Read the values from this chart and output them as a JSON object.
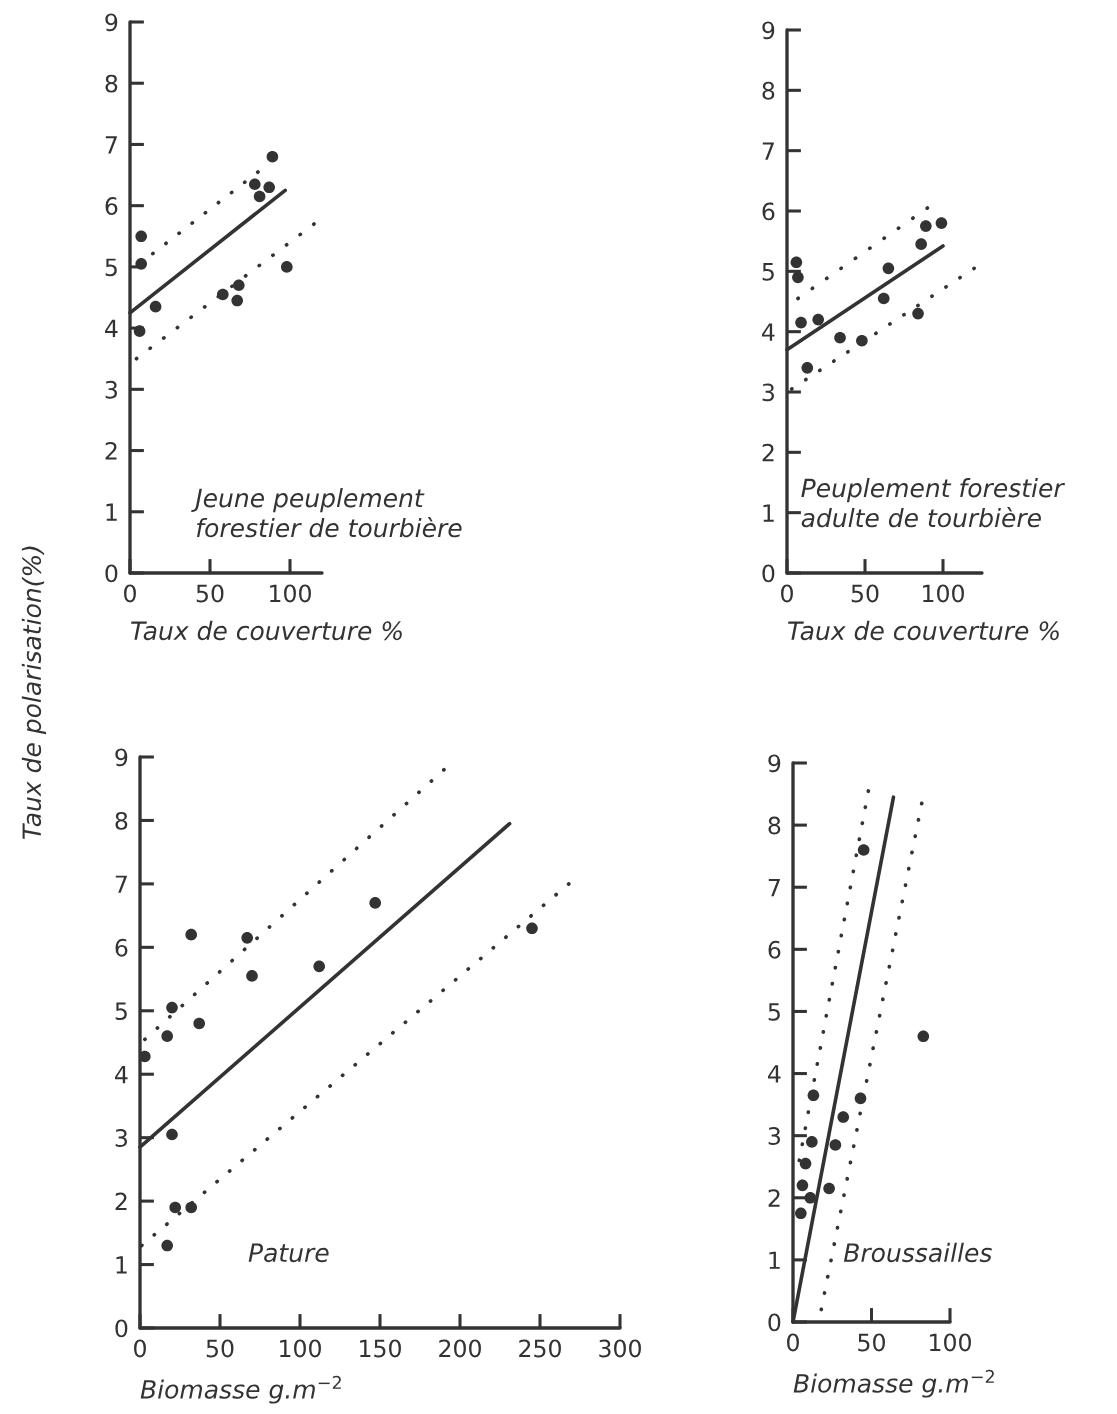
{
  "chart_data": [
    {
      "type": "scatter",
      "xlabel": "Taux de couverture %",
      "annotations": [
        "Jeune peuplement\nforestier de tourbière"
      ],
      "xlim": [
        0,
        120
      ],
      "ylim": [
        0,
        9
      ],
      "xticks": [
        0,
        50,
        100
      ],
      "yticks": [
        0,
        1,
        2,
        3,
        4,
        5,
        6,
        7,
        8,
        9
      ],
      "series": [
        {
          "marker": "circle",
          "color": "#333333",
          "x": [
            7,
            7,
            6,
            16,
            58,
            68,
            67,
            78,
            81,
            87,
            89,
            98
          ],
          "values": [
            5.5,
            5.05,
            3.95,
            4.35,
            4.55,
            4.7,
            4.45,
            6.35,
            6.15,
            6.3,
            6.8,
            5.0
          ]
        },
        {
          "type": "line",
          "line_style": "solid",
          "color": "#333333",
          "x": [
            0,
            97
          ],
          "values": [
            4.25,
            6.25
          ]
        },
        {
          "type": "line",
          "line_style": "dotted",
          "color": "#333333",
          "x": [
            6,
            80
          ],
          "values": [
            5.05,
            6.55
          ]
        },
        {
          "type": "line",
          "line_style": "dotted",
          "color": "#333333",
          "x": [
            4,
            115
          ],
          "values": [
            3.5,
            5.7
          ]
        }
      ]
    },
    {
      "type": "scatter",
      "xlabel": "Taux de couverture %",
      "annotations": [
        "Peuplement forestier\nadulte de tourbière"
      ],
      "xlim": [
        0,
        125
      ],
      "ylim": [
        0,
        9
      ],
      "xticks": [
        0,
        50,
        100
      ],
      "yticks": [
        0,
        1,
        2,
        3,
        4,
        5,
        6,
        7,
        8,
        9
      ],
      "series": [
        {
          "marker": "circle",
          "color": "#333333",
          "x": [
            6,
            7,
            9,
            20,
            13,
            34,
            48,
            62,
            65,
            84,
            86,
            89,
            99
          ],
          "values": [
            5.15,
            4.9,
            4.15,
            4.2,
            3.4,
            3.9,
            3.85,
            4.55,
            5.05,
            4.3,
            5.45,
            5.75,
            5.8
          ]
        },
        {
          "type": "line",
          "line_style": "solid",
          "color": "#333333",
          "x": [
            0,
            100
          ],
          "values": [
            3.7,
            5.42
          ]
        },
        {
          "type": "line",
          "line_style": "dotted",
          "color": "#333333",
          "x": [
            7,
            90
          ],
          "values": [
            4.55,
            6.05
          ]
        },
        {
          "type": "line",
          "line_style": "dotted",
          "color": "#333333",
          "x": [
            3,
            120
          ],
          "values": [
            3.05,
            5.05
          ]
        }
      ]
    },
    {
      "type": "scatter",
      "xlabel": "Biomasse g.m$^{−2}$",
      "ylabel": "Taux de polarisation(%)",
      "annotations": [
        "Pature"
      ],
      "xlim": [
        0,
        300
      ],
      "ylim": [
        0,
        9
      ],
      "xticks": [
        0,
        50,
        100,
        150,
        200,
        250,
        300
      ],
      "yticks": [
        0,
        1,
        2,
        3,
        4,
        5,
        6,
        7,
        8,
        9
      ],
      "series": [
        {
          "marker": "circle",
          "color": "#333333",
          "x": [
            3,
            17,
            20,
            32,
            37,
            67,
            70,
            112,
            147,
            245,
            20,
            22,
            32,
            17
          ],
          "values": [
            4.28,
            4.6,
            5.05,
            6.2,
            4.8,
            6.15,
            5.55,
            5.7,
            6.7,
            6.3,
            3.05,
            1.9,
            1.9,
            1.3
          ]
        },
        {
          "type": "line",
          "line_style": "solid",
          "color": "#333333",
          "x": [
            0,
            231
          ],
          "values": [
            2.85,
            7.95
          ]
        },
        {
          "type": "line",
          "line_style": "dotted",
          "color": "#333333",
          "x": [
            3,
            190
          ],
          "values": [
            4.55,
            8.8
          ]
        },
        {
          "type": "line",
          "line_style": "dotted",
          "color": "#333333",
          "x": [
            1,
            268
          ],
          "values": [
            1.3,
            7.0
          ]
        }
      ]
    },
    {
      "type": "scatter",
      "xlabel": "Biomasse g.m$^{−2}$",
      "annotations": [
        "Broussailles"
      ],
      "xlim": [
        0,
        100
      ],
      "ylim": [
        0,
        9
      ],
      "xticks": [
        0,
        50,
        100
      ],
      "yticks": [
        0,
        1,
        2,
        3,
        4,
        5,
        6,
        7,
        8,
        9
      ],
      "series": [
        {
          "marker": "circle",
          "color": "#333333",
          "x": [
            5,
            6,
            8,
            12,
            11,
            13,
            23,
            27,
            32,
            43,
            45,
            83
          ],
          "values": [
            1.75,
            2.2,
            2.55,
            2.9,
            2.0,
            3.65,
            2.15,
            2.85,
            3.3,
            3.6,
            7.6,
            4.6
          ]
        },
        {
          "type": "line",
          "line_style": "solid",
          "color": "#333333",
          "x": [
            0,
            64
          ],
          "values": [
            0,
            8.45
          ]
        },
        {
          "type": "line",
          "line_style": "dotted",
          "color": "#333333",
          "x": [
            4,
            48
          ],
          "values": [
            2.6,
            8.55
          ]
        },
        {
          "type": "line",
          "line_style": "dotted",
          "color": "#333333",
          "x": [
            18,
            82
          ],
          "values": [
            0.2,
            8.35
          ]
        }
      ]
    }
  ]
}
